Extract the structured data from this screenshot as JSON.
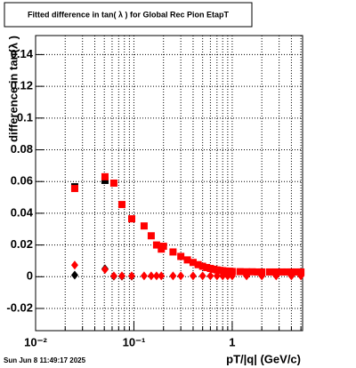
{
  "chart_data": {
    "type": "scatter",
    "title": "Fitted difference in tan( λ ) for Global Rec Pion EtapT",
    "x_label": "pT/|q| (GeV/c)",
    "y_label": "difference in tan(λ )",
    "timestamp": "Sun Jun  8 11:49:17 2025",
    "xscale": "log",
    "xlim": [
      0.01,
      5.2
    ],
    "xticks": [
      {
        "value": 0.01,
        "label": "10⁻²"
      },
      {
        "value": 0.1,
        "label": "10⁻¹"
      },
      1
    ],
    "xminorticks": [
      0.02,
      0.03,
      0.04,
      0.05,
      0.06,
      0.07,
      0.08,
      0.09,
      0.2,
      0.3,
      0.4,
      0.5,
      0.6,
      0.7,
      0.8,
      0.9,
      2,
      3,
      4,
      5
    ],
    "ylim": [
      -0.034,
      0.152
    ],
    "yticks": [
      -0.02,
      0,
      0.02,
      0.04,
      0.06,
      0.08,
      0.1,
      0.12,
      0.14
    ],
    "grid": true,
    "series": [
      {
        "color": "#000000",
        "marker": "square",
        "x": [
          0.025,
          0.0508
        ],
        "values": [
          0.0567,
          0.0607
        ]
      },
      {
        "color": "#000000",
        "marker": "diamond",
        "x": [
          0.025,
          0.0508,
          0.0625,
          0.0755,
          0.095
        ],
        "values": [
          0.001,
          0.005,
          0.0003,
          0.0003,
          0.0003
        ]
      },
      {
        "color": "#ff0000",
        "marker": "square",
        "x": [
          0.025,
          0.0508,
          0.0625,
          0.0755,
          0.095,
          0.127,
          0.15,
          0.17,
          0.19,
          0.2,
          0.25,
          0.3,
          0.35,
          0.4,
          0.45,
          0.5,
          0.55,
          0.6,
          0.65,
          0.7,
          0.75,
          0.8,
          0.85,
          0.9,
          0.95,
          1.0,
          1.2,
          1.4,
          1.6,
          1.8,
          2.0,
          2.4,
          2.8,
          3.2,
          3.6,
          4.0,
          4.5,
          5.0
        ],
        "values": [
          0.0556,
          0.063,
          0.059,
          0.0455,
          0.0365,
          0.032,
          0.0258,
          0.02,
          0.0174,
          0.0192,
          0.0156,
          0.0128,
          0.0106,
          0.009,
          0.0076,
          0.0066,
          0.0058,
          0.0052,
          0.0047,
          0.0043,
          0.004,
          0.0038,
          0.0036,
          0.0035,
          0.0034,
          0.0033,
          0.0032,
          0.0031,
          0.0031,
          0.003,
          0.003,
          0.003,
          0.003,
          0.003,
          0.003,
          0.003,
          0.003,
          0.003
        ]
      },
      {
        "color": "#ff0000",
        "marker": "diamond",
        "x": [
          0.025,
          0.0508,
          0.0625,
          0.0755,
          0.095,
          0.127,
          0.15,
          0.17,
          0.19,
          0.25,
          0.3,
          0.4,
          0.5,
          0.6,
          0.7,
          0.8,
          0.9,
          1.0,
          1.4,
          2.0,
          2.8,
          4.0,
          5.0
        ],
        "values": [
          0.0073,
          0.0045,
          0.0005,
          0.0005,
          0.0005,
          0.0005,
          0.0005,
          0.0005,
          0.0005,
          0.0005,
          0.0005,
          0.0005,
          0.0005,
          0.0005,
          0.0005,
          0.0005,
          0.0005,
          0.0005,
          0.0005,
          0.0005,
          0.0005,
          0.0005,
          0.0005
        ]
      }
    ]
  }
}
